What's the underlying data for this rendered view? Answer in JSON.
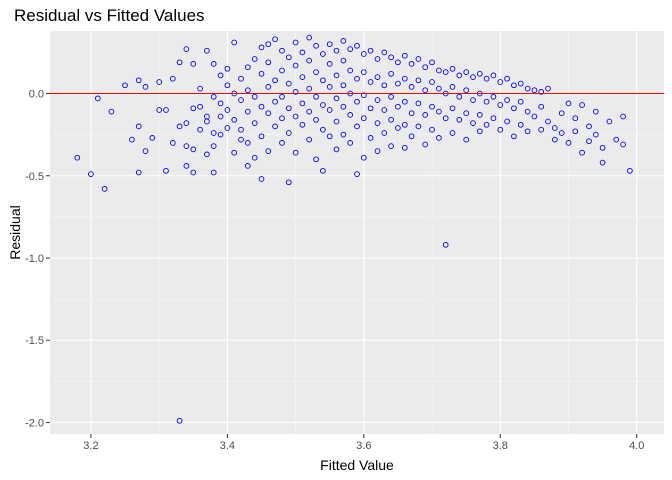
{
  "chart_data": {
    "type": "scatter",
    "title": "Residual vs Fitted Values",
    "xlabel": "Fitted Value",
    "ylabel": "Residual",
    "xlim": [
      3.14,
      4.04
    ],
    "ylim": [
      -2.07,
      0.38
    ],
    "x_ticks": [
      3.2,
      3.4,
      3.6,
      3.8,
      4.0
    ],
    "x_tick_labels": [
      "3.2",
      "3.4",
      "3.6",
      "3.8",
      "4.0"
    ],
    "y_ticks": [
      -2.0,
      -1.5,
      -1.0,
      -0.5,
      0.0
    ],
    "y_tick_labels": [
      "-2.0",
      "-1.5",
      "-1.0",
      "-0.5",
      "0.0"
    ],
    "reference_line": {
      "y": 0.0,
      "color": "#ff0000"
    },
    "grid": true,
    "panel_background": "#ebebeb",
    "point_color": "#0000ff",
    "series": [
      {
        "points": [
          [
            3.18,
            -0.39
          ],
          [
            3.2,
            -0.49
          ],
          [
            3.21,
            -0.03
          ],
          [
            3.22,
            -0.58
          ],
          [
            3.23,
            -0.11
          ],
          [
            3.25,
            0.05
          ],
          [
            3.26,
            -0.28
          ],
          [
            3.27,
            -0.48
          ],
          [
            3.27,
            0.08
          ],
          [
            3.27,
            -0.2
          ],
          [
            3.28,
            0.04
          ],
          [
            3.28,
            -0.35
          ],
          [
            3.29,
            -0.27
          ],
          [
            3.3,
            0.07
          ],
          [
            3.3,
            -0.1
          ],
          [
            3.31,
            -0.1
          ],
          [
            3.31,
            -0.47
          ],
          [
            3.32,
            0.09
          ],
          [
            3.32,
            -0.3
          ],
          [
            3.33,
            0.19
          ],
          [
            3.33,
            -0.2
          ],
          [
            3.34,
            0.27
          ],
          [
            3.34,
            -0.18
          ],
          [
            3.34,
            -0.32
          ],
          [
            3.34,
            -0.44
          ],
          [
            3.35,
            0.18
          ],
          [
            3.35,
            -0.09
          ],
          [
            3.35,
            -0.34
          ],
          [
            3.35,
            -0.48
          ],
          [
            3.36,
            -0.08
          ],
          [
            3.36,
            0.03
          ],
          [
            3.36,
            -0.22
          ],
          [
            3.37,
            0.26
          ],
          [
            3.37,
            -0.17
          ],
          [
            3.37,
            -0.37
          ],
          [
            3.37,
            -0.14
          ],
          [
            3.38,
            0.18
          ],
          [
            3.38,
            -0.02
          ],
          [
            3.38,
            -0.24
          ],
          [
            3.38,
            -0.32
          ],
          [
            3.38,
            -0.48
          ],
          [
            3.39,
            0.11
          ],
          [
            3.39,
            -0.06
          ],
          [
            3.39,
            -0.14
          ],
          [
            3.39,
            -0.25
          ],
          [
            3.4,
            0.05
          ],
          [
            3.4,
            0.15
          ],
          [
            3.4,
            -0.1
          ],
          [
            3.4,
            -0.21
          ],
          [
            3.41,
            0.31
          ],
          [
            3.41,
            0.0
          ],
          [
            3.41,
            -0.16
          ],
          [
            3.41,
            -0.36
          ],
          [
            3.42,
            0.09
          ],
          [
            3.42,
            -0.04
          ],
          [
            3.42,
            -0.22
          ],
          [
            3.42,
            -0.28
          ],
          [
            3.43,
            0.16
          ],
          [
            3.43,
            0.02
          ],
          [
            3.43,
            -0.11
          ],
          [
            3.43,
            -0.3
          ],
          [
            3.43,
            -0.44
          ],
          [
            3.44,
            0.21
          ],
          [
            3.44,
            -0.02
          ],
          [
            3.44,
            -0.18
          ],
          [
            3.44,
            -0.39
          ],
          [
            3.45,
            0.28
          ],
          [
            3.45,
            0.12
          ],
          [
            3.45,
            -0.08
          ],
          [
            3.45,
            -0.26
          ],
          [
            3.45,
            -0.52
          ],
          [
            3.46,
            0.3
          ],
          [
            3.46,
            0.19
          ],
          [
            3.46,
            0.04
          ],
          [
            3.46,
            -0.12
          ],
          [
            3.46,
            -0.35
          ],
          [
            3.47,
            0.33
          ],
          [
            3.47,
            0.08
          ],
          [
            3.47,
            -0.05
          ],
          [
            3.47,
            -0.2
          ],
          [
            3.48,
            0.26
          ],
          [
            3.48,
            0.14
          ],
          [
            3.48,
            -0.02
          ],
          [
            3.48,
            -0.15
          ],
          [
            3.48,
            -0.3
          ],
          [
            3.49,
            0.22
          ],
          [
            3.49,
            0.06
          ],
          [
            3.49,
            -0.09
          ],
          [
            3.49,
            -0.24
          ],
          [
            3.49,
            -0.54
          ],
          [
            3.5,
            0.31
          ],
          [
            3.5,
            0.17
          ],
          [
            3.5,
            0.01
          ],
          [
            3.5,
            -0.14
          ],
          [
            3.5,
            -0.36
          ],
          [
            3.51,
            0.25
          ],
          [
            3.51,
            0.1
          ],
          [
            3.51,
            -0.06
          ],
          [
            3.51,
            -0.19
          ],
          [
            3.52,
            0.34
          ],
          [
            3.52,
            0.2
          ],
          [
            3.52,
            0.03
          ],
          [
            3.52,
            -0.11
          ],
          [
            3.52,
            -0.28
          ],
          [
            3.53,
            0.29
          ],
          [
            3.53,
            0.13
          ],
          [
            3.53,
            -0.02
          ],
          [
            3.53,
            -0.16
          ],
          [
            3.53,
            -0.4
          ],
          [
            3.54,
            0.24
          ],
          [
            3.54,
            0.08
          ],
          [
            3.54,
            -0.07
          ],
          [
            3.54,
            -0.22
          ],
          [
            3.54,
            -0.47
          ],
          [
            3.55,
            0.3
          ],
          [
            3.55,
            0.18
          ],
          [
            3.55,
            0.04
          ],
          [
            3.55,
            -0.1
          ],
          [
            3.55,
            -0.26
          ],
          [
            3.56,
            0.26
          ],
          [
            3.56,
            0.11
          ],
          [
            3.56,
            -0.03
          ],
          [
            3.56,
            -0.17
          ],
          [
            3.56,
            -0.34
          ],
          [
            3.57,
            0.32
          ],
          [
            3.57,
            0.2
          ],
          [
            3.57,
            0.05
          ],
          [
            3.57,
            -0.08
          ],
          [
            3.57,
            -0.25
          ],
          [
            3.58,
            0.27
          ],
          [
            3.58,
            0.14
          ],
          [
            3.58,
            0.0
          ],
          [
            3.58,
            -0.13
          ],
          [
            3.58,
            -0.3
          ],
          [
            3.59,
            0.29
          ],
          [
            3.59,
            0.09
          ],
          [
            3.59,
            -0.05
          ],
          [
            3.59,
            -0.2
          ],
          [
            3.59,
            -0.49
          ],
          [
            3.6,
            0.24
          ],
          [
            3.6,
            0.13
          ],
          [
            3.6,
            -0.01
          ],
          [
            3.6,
            -0.15
          ],
          [
            3.6,
            -0.39
          ],
          [
            3.61,
            0.26
          ],
          [
            3.61,
            0.07
          ],
          [
            3.61,
            -0.09
          ],
          [
            3.61,
            -0.27
          ],
          [
            3.62,
            0.21
          ],
          [
            3.62,
            0.1
          ],
          [
            3.62,
            -0.04
          ],
          [
            3.62,
            -0.18
          ],
          [
            3.62,
            -0.35
          ],
          [
            3.63,
            0.25
          ],
          [
            3.63,
            0.05
          ],
          [
            3.63,
            -0.1
          ],
          [
            3.63,
            -0.24
          ],
          [
            3.64,
            0.22
          ],
          [
            3.64,
            0.12
          ],
          [
            3.64,
            -0.02
          ],
          [
            3.64,
            -0.16
          ],
          [
            3.64,
            -0.32
          ],
          [
            3.65,
            0.19
          ],
          [
            3.65,
            0.06
          ],
          [
            3.65,
            -0.08
          ],
          [
            3.65,
            -0.21
          ],
          [
            3.66,
            0.23
          ],
          [
            3.66,
            0.09
          ],
          [
            3.66,
            -0.05
          ],
          [
            3.66,
            -0.19
          ],
          [
            3.66,
            -0.33
          ],
          [
            3.67,
            0.18
          ],
          [
            3.67,
            0.04
          ],
          [
            3.67,
            -0.12
          ],
          [
            3.67,
            -0.26
          ],
          [
            3.68,
            0.21
          ],
          [
            3.68,
            0.08
          ],
          [
            3.68,
            -0.06
          ],
          [
            3.68,
            -0.2
          ],
          [
            3.69,
            0.16
          ],
          [
            3.69,
            0.02
          ],
          [
            3.69,
            -0.13
          ],
          [
            3.69,
            -0.31
          ],
          [
            3.7,
            0.19
          ],
          [
            3.7,
            0.07
          ],
          [
            3.7,
            -0.08
          ],
          [
            3.7,
            -0.22
          ],
          [
            3.71,
            0.14
          ],
          [
            3.71,
            0.03
          ],
          [
            3.71,
            -0.11
          ],
          [
            3.71,
            -0.27
          ],
          [
            3.72,
            0.13
          ],
          [
            3.72,
            0.0
          ],
          [
            3.72,
            -0.15
          ],
          [
            3.72,
            -0.92
          ],
          [
            3.73,
            0.15
          ],
          [
            3.73,
            0.04
          ],
          [
            3.73,
            -0.09
          ],
          [
            3.73,
            -0.24
          ],
          [
            3.74,
            0.11
          ],
          [
            3.74,
            -0.02
          ],
          [
            3.74,
            -0.16
          ],
          [
            3.75,
            0.13
          ],
          [
            3.75,
            0.02
          ],
          [
            3.75,
            -0.12
          ],
          [
            3.75,
            -0.28
          ],
          [
            3.76,
            0.1
          ],
          [
            3.76,
            -0.04
          ],
          [
            3.76,
            -0.18
          ],
          [
            3.77,
            0.12
          ],
          [
            3.77,
            0.0
          ],
          [
            3.77,
            -0.13
          ],
          [
            3.77,
            -0.23
          ],
          [
            3.78,
            0.09
          ],
          [
            3.78,
            -0.05
          ],
          [
            3.78,
            -0.19
          ],
          [
            3.79,
            0.11
          ],
          [
            3.79,
            -0.02
          ],
          [
            3.79,
            -0.15
          ],
          [
            3.8,
            0.07
          ],
          [
            3.8,
            -0.07
          ],
          [
            3.8,
            -0.22
          ],
          [
            3.81,
            0.09
          ],
          [
            3.81,
            -0.04
          ],
          [
            3.81,
            -0.17
          ],
          [
            3.82,
            0.05
          ],
          [
            3.82,
            -0.09
          ],
          [
            3.82,
            -0.26
          ],
          [
            3.83,
            0.06
          ],
          [
            3.83,
            -0.05
          ],
          [
            3.83,
            -0.19
          ],
          [
            3.84,
            0.03
          ],
          [
            3.84,
            -0.11
          ],
          [
            3.84,
            -0.23
          ],
          [
            3.85,
            0.02
          ],
          [
            3.85,
            -0.14
          ],
          [
            3.86,
            0.01
          ],
          [
            3.86,
            -0.08
          ],
          [
            3.86,
            -0.22
          ],
          [
            3.87,
            0.03
          ],
          [
            3.87,
            -0.17
          ],
          [
            3.88,
            -0.21
          ],
          [
            3.88,
            -0.28
          ],
          [
            3.89,
            -0.12
          ],
          [
            3.89,
            -0.24
          ],
          [
            3.9,
            -0.06
          ],
          [
            3.9,
            -0.3
          ],
          [
            3.91,
            -0.15
          ],
          [
            3.91,
            -0.23
          ],
          [
            3.92,
            -0.07
          ],
          [
            3.92,
            -0.36
          ],
          [
            3.93,
            -0.2
          ],
          [
            3.93,
            -0.29
          ],
          [
            3.94,
            -0.11
          ],
          [
            3.94,
            -0.25
          ],
          [
            3.95,
            -0.33
          ],
          [
            3.95,
            -0.42
          ],
          [
            3.96,
            -0.17
          ],
          [
            3.97,
            -0.28
          ],
          [
            3.98,
            -0.14
          ],
          [
            3.98,
            -0.31
          ],
          [
            3.99,
            -0.47
          ],
          [
            3.33,
            -1.99
          ]
        ]
      }
    ]
  }
}
